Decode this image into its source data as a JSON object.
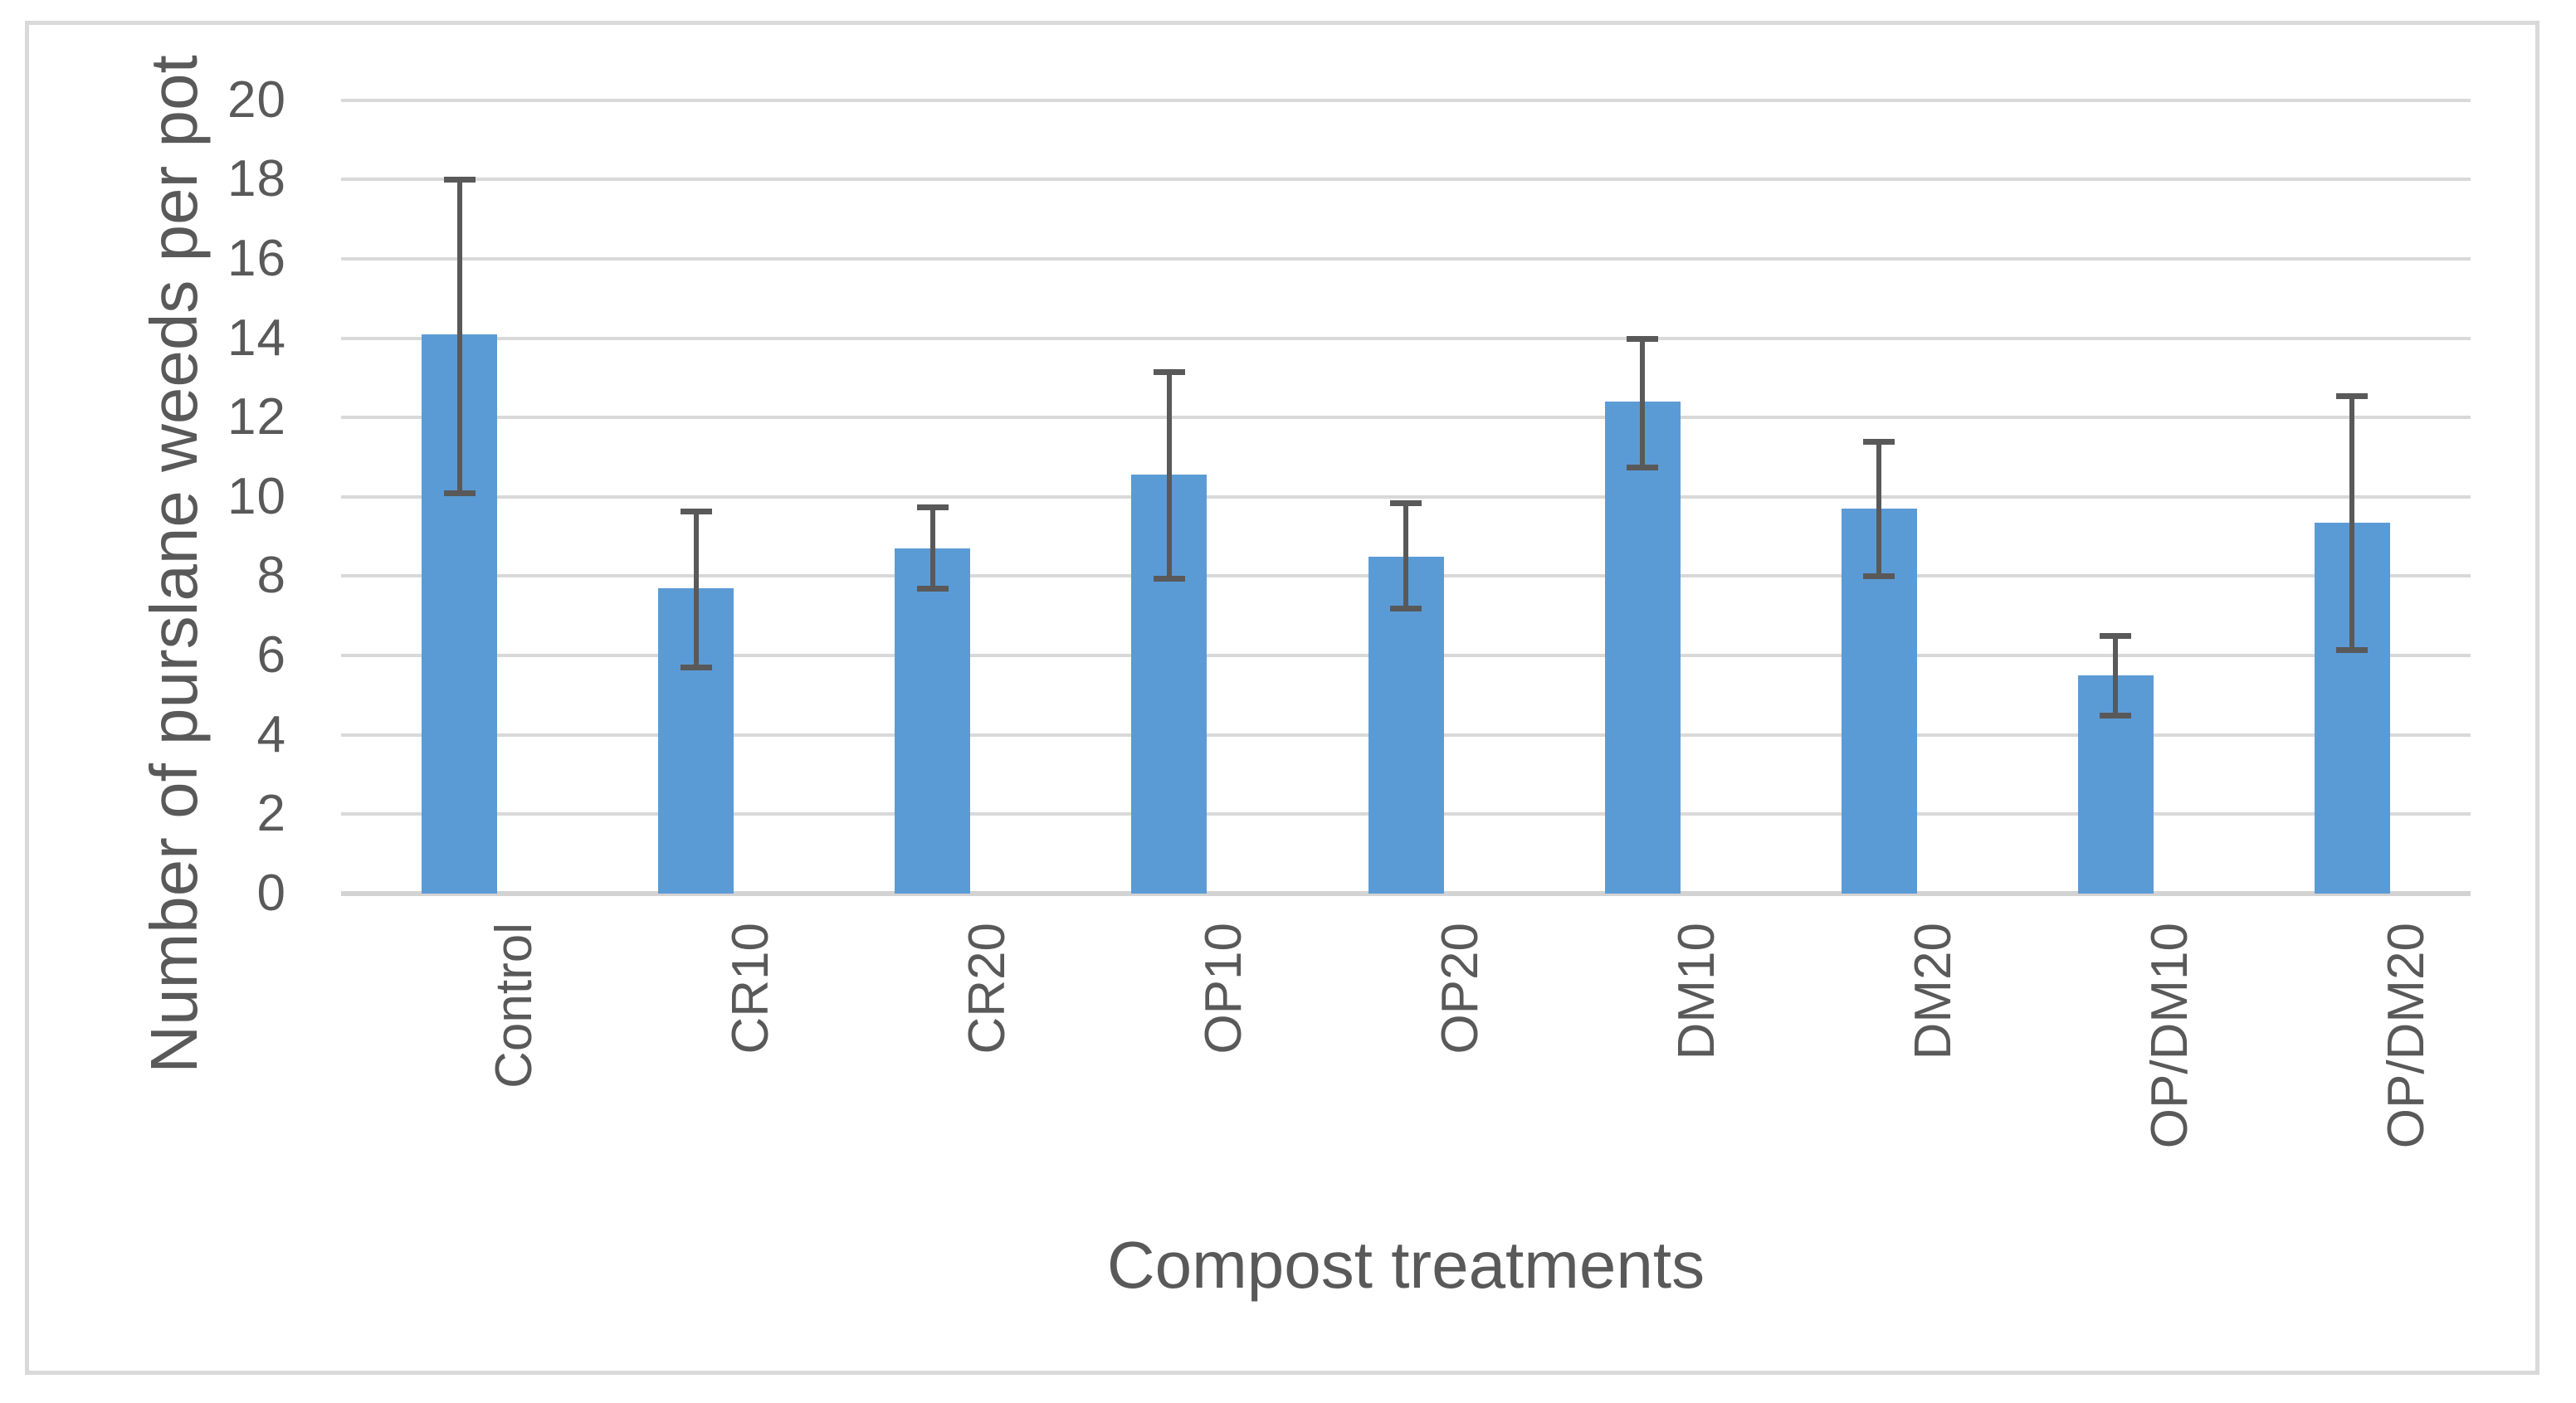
{
  "chart_data": {
    "type": "bar",
    "title": "",
    "xlabel": "Compost treatments",
    "ylabel": "Number of purslane weeds per pot",
    "categories": [
      "Control",
      "CR10",
      "CR20",
      "OP10",
      "OP20",
      "DM10",
      "DM20",
      "OP/DM10",
      "OP/DM20"
    ],
    "values": [
      14.1,
      7.7,
      8.7,
      10.55,
      8.5,
      12.4,
      9.7,
      5.5,
      9.35
    ],
    "error_low": [
      10.1,
      5.7,
      7.7,
      7.95,
      7.2,
      10.75,
      8.0,
      4.5,
      6.15
    ],
    "error_high": [
      18.0,
      9.65,
      9.75,
      13.15,
      9.85,
      14.0,
      11.4,
      6.5,
      12.55
    ],
    "ylim": [
      0,
      20
    ],
    "ytick_step": 2,
    "ytick_labels": [
      "0",
      "2",
      "4",
      "6",
      "8",
      "10",
      "12",
      "14",
      "16",
      "18",
      "20"
    ],
    "grid": true,
    "legend_position": "none",
    "bar_color": "#5b9bd5",
    "error_bar_color": "#595959",
    "gridline_color": "#d9d9d9",
    "text_color": "#595959",
    "border_color": "#d9d9d9"
  }
}
